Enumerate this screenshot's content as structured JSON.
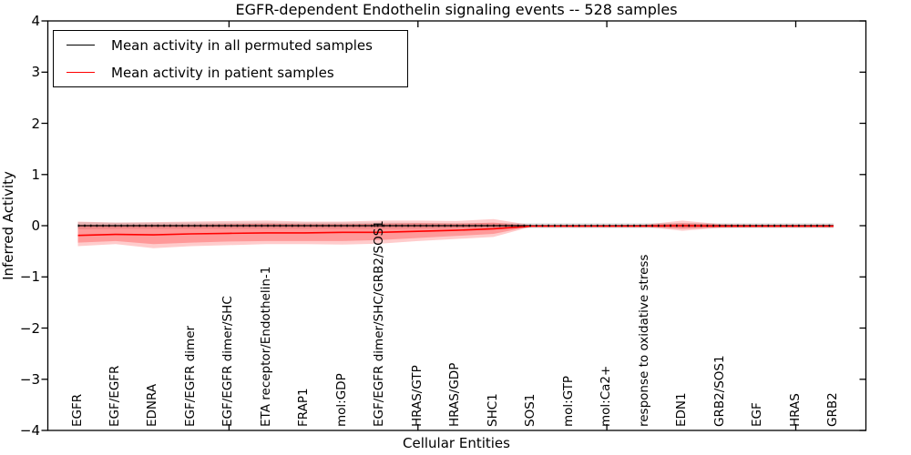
{
  "chart_data": {
    "type": "line",
    "title": "EGFR-dependent Endothelin signaling events -- 528 samples",
    "xlabel": "Cellular Entities",
    "ylabel": "Inferred Activity",
    "ylim": [
      -4,
      4
    ],
    "yticks": [
      -4,
      -3,
      -2,
      -1,
      0,
      1,
      2,
      3,
      4
    ],
    "yticklabels": [
      "−4",
      "−3",
      "−2",
      "−1",
      "0",
      "1",
      "2",
      "3",
      "4"
    ],
    "x_major_tick_indices": [
      4,
      9,
      14,
      19
    ],
    "grid": false,
    "background_color": "#ffffff",
    "categories": [
      "EGFR",
      "EGF/EGFR",
      "EDNRA",
      "EGF/EGFR dimer",
      "EGF/EGFR dimer/SHC",
      "ETA receptor/Endothelin-1",
      "FRAP1",
      "mol:GDP",
      "EGF/EGFR dimer/SHC/GRB2/SOS1",
      "HRAS/GTP",
      "HRAS/GDP",
      "SHC1",
      "SOS1",
      "mol:GTP",
      "mol:Ca2+",
      "response to oxidative stress",
      "EDN1",
      "GRB2/SOS1",
      "EGF",
      "HRAS",
      "GRB2"
    ],
    "series": [
      {
        "name": "Mean activity in all permuted samples",
        "color": "#000000",
        "line_style": "solid-with-dot-markers",
        "values": [
          0,
          0,
          0,
          0,
          0,
          0,
          0,
          0,
          0,
          0,
          0,
          0,
          0,
          0,
          0,
          0,
          0,
          0,
          0,
          0,
          0
        ],
        "band_upper": [
          0.07,
          0.06,
          0.06,
          0.06,
          0.06,
          0.06,
          0.06,
          0.06,
          0.06,
          0.055,
          0.05,
          0.05,
          0.05,
          0.05,
          0.05,
          0.05,
          0.05,
          0.05,
          0.05,
          0.05,
          0.05
        ],
        "band_lower": [
          -0.07,
          -0.06,
          -0.06,
          -0.06,
          -0.06,
          -0.06,
          -0.06,
          -0.06,
          -0.06,
          -0.055,
          -0.05,
          -0.05,
          -0.05,
          -0.05,
          -0.05,
          -0.05,
          -0.05,
          -0.05,
          -0.05,
          -0.05,
          -0.05
        ],
        "band_color": "#999999",
        "band_opacity": 0.3
      },
      {
        "name": "Mean activity in patient samples",
        "color": "#ff0000",
        "line_style": "solid",
        "values": [
          -0.19,
          -0.17,
          -0.18,
          -0.16,
          -0.15,
          -0.14,
          -0.14,
          -0.13,
          -0.13,
          -0.11,
          -0.09,
          -0.06,
          -0.01,
          -0.01,
          -0.01,
          -0.01,
          0.0,
          -0.01,
          -0.01,
          -0.01,
          -0.01
        ],
        "band_outer_upper": [
          0.08,
          0.06,
          0.07,
          0.08,
          0.09,
          0.1,
          0.08,
          0.08,
          0.1,
          0.1,
          0.09,
          0.13,
          0.01,
          0.01,
          0.01,
          0.02,
          0.1,
          0.03,
          0.02,
          0.02,
          0.02
        ],
        "band_outer_lower": [
          -0.4,
          -0.36,
          -0.44,
          -0.4,
          -0.38,
          -0.36,
          -0.36,
          -0.37,
          -0.35,
          -0.3,
          -0.26,
          -0.22,
          -0.02,
          -0.02,
          -0.02,
          -0.02,
          -0.1,
          -0.04,
          -0.03,
          -0.03,
          -0.03
        ],
        "band_inner_upper": [
          0.02,
          0.01,
          0.02,
          0.02,
          0.03,
          0.04,
          0.03,
          0.03,
          0.04,
          0.05,
          0.04,
          0.06,
          0.0,
          0.0,
          0.0,
          0.01,
          0.05,
          0.02,
          0.01,
          0.01,
          0.01
        ],
        "band_inner_lower": [
          -0.33,
          -0.3,
          -0.36,
          -0.33,
          -0.31,
          -0.3,
          -0.3,
          -0.3,
          -0.28,
          -0.24,
          -0.2,
          -0.16,
          -0.015,
          -0.015,
          -0.015,
          -0.015,
          -0.06,
          -0.025,
          -0.02,
          -0.02,
          -0.02
        ],
        "band_color": "#ff0000",
        "band_outer_opacity": 0.2,
        "band_inner_opacity": 0.25
      }
    ],
    "legend": {
      "position": "upper left",
      "entries": [
        {
          "label": "Mean activity in all permuted samples",
          "color": "#000000"
        },
        {
          "label": "Mean activity in patient samples",
          "color": "#ff0000"
        }
      ]
    }
  }
}
